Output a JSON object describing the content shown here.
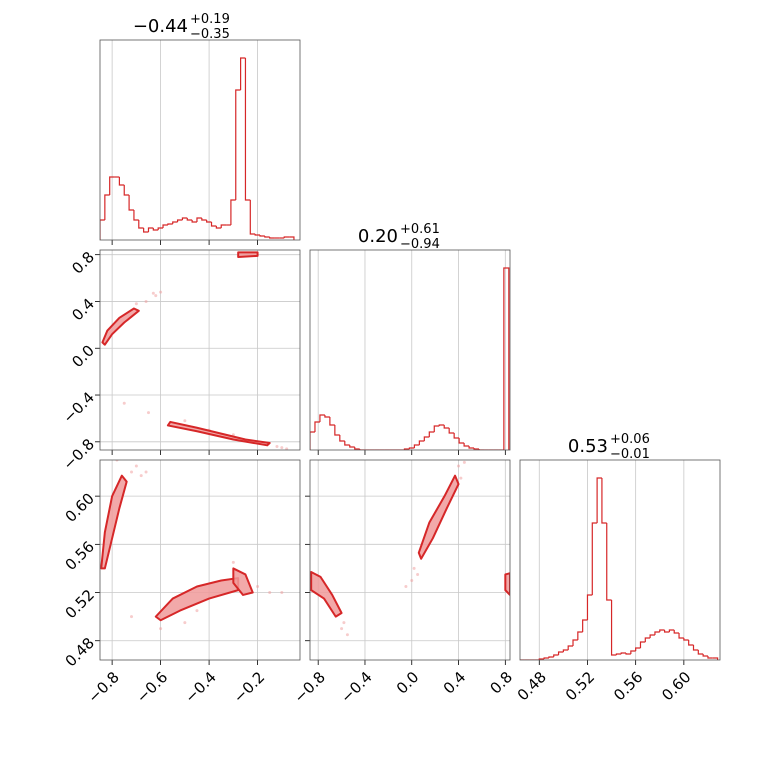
{
  "chart_data": [
    {
      "type": "histogram",
      "color": "#d62728",
      "title": "−0.44",
      "title_sup": "+0.19",
      "title_sub": "−0.35",
      "bins": [
        -0.85,
        -0.83,
        -0.81,
        -0.79,
        -0.77,
        -0.75,
        -0.73,
        -0.71,
        -0.69,
        -0.67,
        -0.65,
        -0.63,
        -0.61,
        -0.59,
        -0.57,
        -0.55,
        -0.53,
        -0.51,
        -0.49,
        -0.47,
        -0.45,
        -0.43,
        -0.41,
        -0.39,
        -0.37,
        -0.35,
        -0.33,
        -0.31,
        -0.29,
        -0.27,
        -0.25,
        -0.23,
        -0.21,
        -0.19,
        -0.17,
        -0.15,
        -0.13,
        -0.11,
        -0.09,
        -0.07,
        -0.05
      ],
      "counts": [
        20,
        45,
        63,
        63,
        55,
        45,
        30,
        20,
        12,
        8,
        12,
        10,
        12,
        15,
        16,
        18,
        20,
        22,
        20,
        18,
        22,
        20,
        18,
        14,
        12,
        15,
        15,
        40,
        150,
        182,
        40,
        6,
        5,
        4,
        3,
        2,
        2,
        2,
        3,
        3
      ],
      "xlim": [
        -0.85,
        -0.025
      ],
      "xticks": [
        -0.8,
        -0.6,
        -0.4,
        -0.2
      ],
      "ylim": [
        0,
        200
      ],
      "grid": true,
      "xtick_labels": false,
      "ytick_labels": false
    },
    {
      "type": "contour",
      "color": "#d62728",
      "fill": "#f09a9a",
      "contours": [
        {
          "x": [
            -0.84,
            -0.82,
            -0.77,
            -0.71,
            -0.69,
            -0.75,
            -0.8,
            -0.83
          ],
          "y": [
            0.05,
            0.15,
            0.26,
            0.34,
            0.32,
            0.22,
            0.12,
            0.03
          ]
        },
        {
          "x": [
            -0.28,
            -0.2,
            -0.2,
            -0.28
          ],
          "y": [
            0.78,
            0.79,
            0.82,
            0.82
          ]
        },
        {
          "x": [
            -0.56,
            -0.45,
            -0.35,
            -0.25,
            -0.15,
            -0.16,
            -0.3,
            -0.45,
            -0.57
          ],
          "y": [
            -0.63,
            -0.68,
            -0.73,
            -0.78,
            -0.81,
            -0.83,
            -0.78,
            -0.71,
            -0.66
          ]
        }
      ],
      "points_x": [
        -0.66,
        -0.62,
        -0.6,
        -0.63,
        -0.7,
        -0.75,
        -0.65,
        -0.5,
        -0.4,
        -0.3,
        -0.2,
        -0.12,
        -0.1,
        -0.08
      ],
      "points_y": [
        0.4,
        0.45,
        0.48,
        0.47,
        0.38,
        -0.47,
        -0.55,
        -0.62,
        -0.7,
        -0.74,
        -0.8,
        -0.84,
        -0.85,
        -0.86
      ],
      "xlim": [
        -0.85,
        -0.025
      ],
      "xticks": [
        -0.8,
        -0.6,
        -0.4,
        -0.2
      ],
      "ylim": [
        -0.87,
        0.84
      ],
      "yticks": [
        {
          "value": -0.8,
          "label": "−0.8"
        },
        {
          "value": -0.4,
          "label": "−0.4"
        },
        {
          "value": 0,
          "label": "0.0"
        },
        0.4,
        0.8
      ],
      "grid": true,
      "xtick_labels": false,
      "ytick_labels": true
    },
    {
      "type": "histogram",
      "color": "#d62728",
      "title": "0.20",
      "title_sup": "+0.61",
      "title_sub": "−0.94",
      "bins": [
        -0.87,
        -0.8275,
        -0.785,
        -0.7425,
        -0.7,
        -0.6575,
        -0.615,
        -0.5725,
        -0.53,
        -0.4875,
        -0.445,
        -0.4025,
        -0.36,
        -0.3175,
        -0.275,
        -0.2325,
        -0.19,
        -0.1475,
        -0.105,
        -0.0625,
        -0.02,
        0.0225,
        0.065,
        0.1075,
        0.15,
        0.1925,
        0.235,
        0.2775,
        0.32,
        0.3625,
        0.405,
        0.4475,
        0.49,
        0.5325,
        0.575,
        0.6175,
        0.66,
        0.7025,
        0.745,
        0.7875,
        0.83
      ],
      "counts": [
        18,
        28,
        35,
        33,
        25,
        15,
        9,
        5,
        3,
        1,
        0,
        0,
        0,
        0,
        0,
        0,
        0,
        0,
        0,
        1,
        2,
        5,
        9,
        13,
        18,
        24,
        25,
        22,
        17,
        12,
        7,
        4,
        2,
        1,
        0,
        0,
        0,
        0,
        0,
        182
      ],
      "xlim": [
        -0.87,
        0.84
      ],
      "xticks": [
        -0.8,
        -0.4,
        0,
        0.4,
        0.8
      ],
      "ylim": [
        0,
        200
      ],
      "grid": true,
      "xtick_labels": false,
      "ytick_labels": false
    },
    {
      "type": "contour",
      "color": "#d62728",
      "fill": "#f09a9a",
      "contours": [
        {
          "x": [
            -0.845,
            -0.83,
            -0.8,
            -0.76,
            -0.74,
            -0.77,
            -0.8,
            -0.83
          ],
          "y": [
            0.54,
            0.57,
            0.6,
            0.617,
            0.612,
            0.59,
            0.565,
            0.54
          ]
        },
        {
          "x": [
            -0.62,
            -0.55,
            -0.45,
            -0.35,
            -0.28,
            -0.28,
            -0.4,
            -0.52,
            -0.6
          ],
          "y": [
            0.5,
            0.515,
            0.525,
            0.53,
            0.532,
            0.522,
            0.515,
            0.505,
            0.497
          ]
        },
        {
          "x": [
            -0.3,
            -0.25,
            -0.22,
            -0.26,
            -0.3
          ],
          "y": [
            0.54,
            0.535,
            0.52,
            0.518,
            0.528
          ]
        }
      ],
      "points_x": [
        -0.72,
        -0.7,
        -0.68,
        -0.66,
        -0.72,
        -0.6,
        -0.5,
        -0.45,
        -0.3,
        -0.2,
        -0.15,
        -0.1,
        -0.78
      ],
      "points_y": [
        0.62,
        0.625,
        0.617,
        0.62,
        0.5,
        0.49,
        0.495,
        0.505,
        0.545,
        0.525,
        0.52,
        0.52,
        0.63
      ],
      "xlim": [
        -0.85,
        -0.025
      ],
      "xticks": [
        {
          "value": -0.8,
          "label": "−0.8"
        },
        {
          "value": -0.6,
          "label": "−0.6"
        },
        {
          "value": -0.4,
          "label": "−0.4"
        },
        {
          "value": -0.2,
          "label": "−0.2"
        }
      ],
      "ylim": [
        0.464,
        0.63
      ],
      "yticks": [
        0.48,
        0.52,
        0.56,
        {
          "value": 0.6,
          "label": "0.60"
        }
      ],
      "grid": true,
      "xtick_labels": true,
      "ytick_labels": true
    },
    {
      "type": "contour",
      "color": "#d62728",
      "fill": "#f09a9a",
      "contours": [
        {
          "x": [
            0.06,
            0.15,
            0.28,
            0.37,
            0.4,
            0.3,
            0.18,
            0.08
          ],
          "y": [
            0.553,
            0.578,
            0.6,
            0.617,
            0.61,
            0.59,
            0.565,
            0.548
          ]
        },
        {
          "x": [
            -0.86,
            -0.78,
            -0.68,
            -0.6,
            -0.65,
            -0.75,
            -0.86
          ],
          "y": [
            0.537,
            0.533,
            0.518,
            0.503,
            0.5,
            0.515,
            0.522
          ]
        },
        {
          "x": [
            0.8,
            0.84,
            0.84,
            0.8
          ],
          "y": [
            0.535,
            0.536,
            0.518,
            0.522
          ]
        }
      ],
      "points_x": [
        0.4,
        0.45,
        0.42,
        0.0,
        -0.05,
        0.02,
        -0.6,
        -0.55,
        -0.58,
        0.05
      ],
      "points_y": [
        0.625,
        0.628,
        0.615,
        0.53,
        0.525,
        0.54,
        0.49,
        0.485,
        0.495,
        0.535
      ],
      "xlim": [
        -0.87,
        0.84
      ],
      "xticks": [
        {
          "value": -0.8,
          "label": "−0.8"
        },
        {
          "value": -0.4,
          "label": "−0.4"
        },
        {
          "value": 0,
          "label": "0.0"
        },
        0.4,
        0.8
      ],
      "ylim": [
        0.464,
        0.63
      ],
      "yticks": [
        0.48,
        0.52,
        0.56,
        0.6
      ],
      "grid": true,
      "xtick_labels": true,
      "ytick_labels": false
    },
    {
      "type": "histogram",
      "color": "#d62728",
      "title": "0.53",
      "title_sup": "+0.06",
      "title_sub": "−0.01",
      "bins": [
        0.464,
        0.468,
        0.472,
        0.476,
        0.48,
        0.484,
        0.488,
        0.492,
        0.496,
        0.5,
        0.504,
        0.508,
        0.512,
        0.516,
        0.52,
        0.524,
        0.528,
        0.532,
        0.536,
        0.54,
        0.544,
        0.548,
        0.552,
        0.556,
        0.56,
        0.564,
        0.568,
        0.572,
        0.576,
        0.58,
        0.584,
        0.588,
        0.592,
        0.596,
        0.6,
        0.604,
        0.608,
        0.612,
        0.616,
        0.62,
        0.624,
        0.628
      ],
      "counts": [
        0,
        0,
        0,
        0,
        1,
        2,
        3,
        5,
        8,
        10,
        14,
        20,
        28,
        40,
        65,
        137,
        182,
        137,
        60,
        5,
        6,
        7,
        6,
        9,
        12,
        18,
        22,
        25,
        28,
        30,
        28,
        30,
        27,
        22,
        20,
        15,
        10,
        6,
        4,
        2,
        2
      ],
      "xlim": [
        0.464,
        0.63
      ],
      "xticks": [
        0.48,
        0.52,
        0.56,
        {
          "value": 0.6,
          "label": "0.60"
        }
      ],
      "ylim": [
        0,
        200
      ],
      "grid": true,
      "xtick_labels": true,
      "ytick_labels": false
    }
  ]
}
